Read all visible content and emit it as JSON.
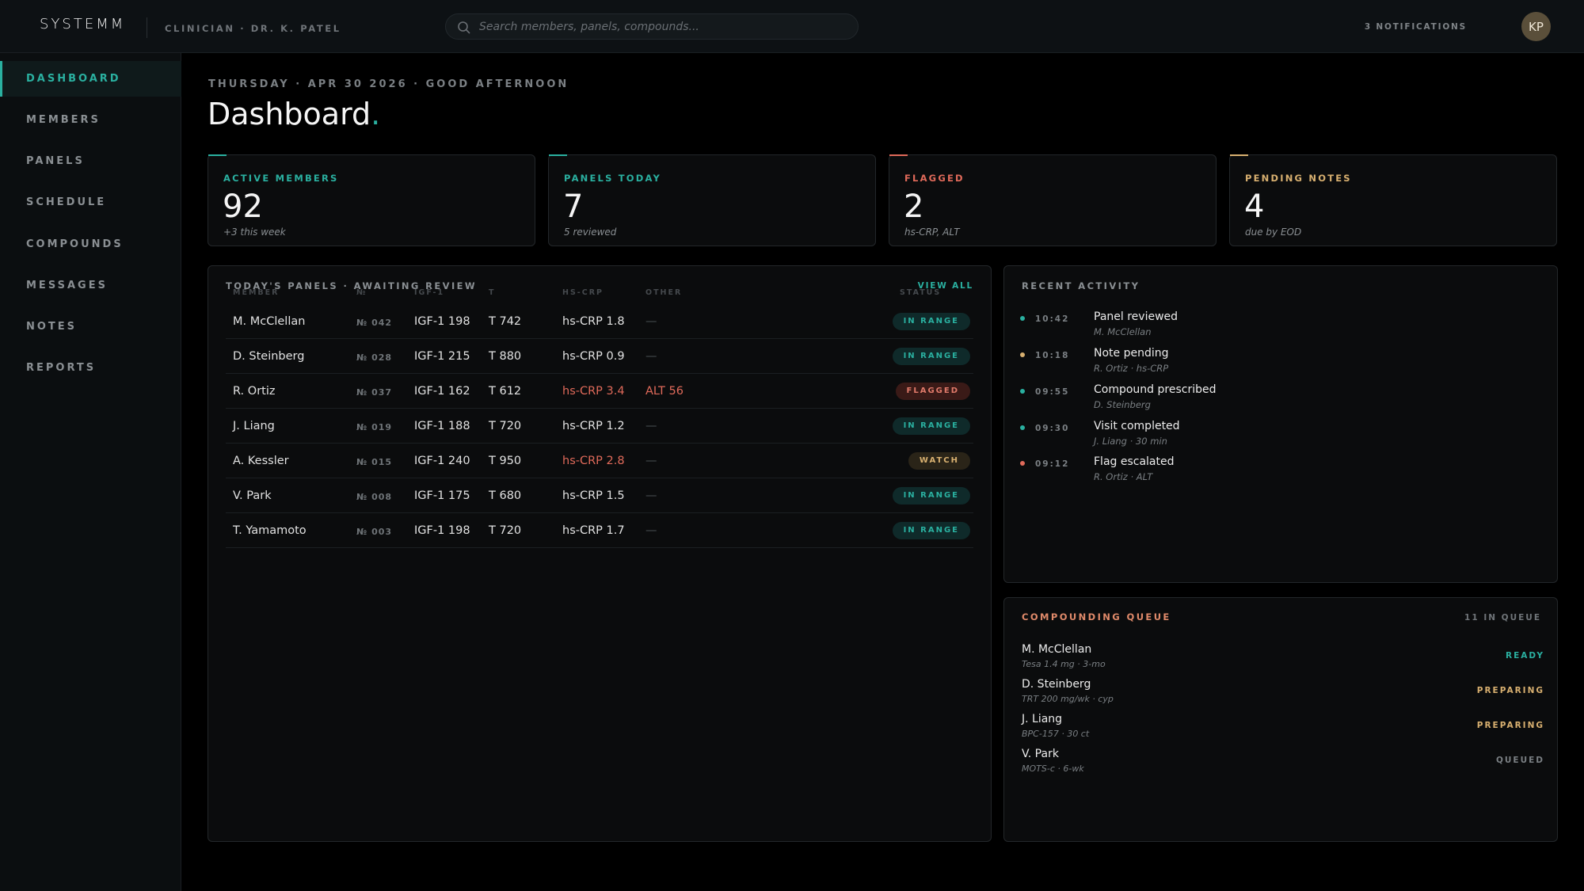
{
  "header": {
    "logo": "SYSTEMM",
    "clinician": "CLINICIAN · DR. K. PATEL",
    "search_placeholder": "Search members, panels, compounds...",
    "notifications": "3 NOTIFICATIONS",
    "avatar_initials": "KP"
  },
  "sidebar": {
    "items": [
      {
        "label": "DASHBOARD",
        "active": true
      },
      {
        "label": "MEMBERS"
      },
      {
        "label": "PANELS"
      },
      {
        "label": "SCHEDULE"
      },
      {
        "label": "COMPOUNDS"
      },
      {
        "label": "MESSAGES"
      },
      {
        "label": "NOTES"
      },
      {
        "label": "REPORTS"
      }
    ]
  },
  "main": {
    "dateline": "THURSDAY · APR 30 2026 · GOOD AFTERNOON",
    "title": "Dashboard",
    "title_dot": ".",
    "stats": [
      {
        "label": "ACTIVE MEMBERS",
        "value": "92",
        "sub": "+3 this week",
        "color": "#2ab0a0"
      },
      {
        "label": "PANELS TODAY",
        "value": "7",
        "sub": "5 reviewed",
        "color": "#2ab0a0"
      },
      {
        "label": "FLAGGED",
        "value": "2",
        "sub": "hs-CRP, ALT",
        "color": "#e06a5a"
      },
      {
        "label": "PENDING NOTES",
        "value": "4",
        "sub": "due by EOD",
        "color": "#d8b070"
      }
    ]
  },
  "panels": {
    "title": "TODAY'S PANELS · AWAITING REVIEW",
    "view_all": "VIEW ALL",
    "columns": [
      "MEMBER",
      "№",
      "IGF-1",
      "T",
      "HS-CRP",
      "OTHER",
      "STATUS"
    ],
    "rows": [
      {
        "member": "M. McClellan",
        "no": "№ 042",
        "igf": "IGF-1 198",
        "t": "T 742",
        "crp": "hs-CRP 1.8",
        "other": "—",
        "status": "IN RANGE"
      },
      {
        "member": "D. Steinberg",
        "no": "№ 028",
        "igf": "IGF-1 215",
        "t": "T 880",
        "crp": "hs-CRP 0.9",
        "other": "—",
        "status": "IN RANGE"
      },
      {
        "member": "R. Ortiz",
        "no": "№ 037",
        "igf": "IGF-1 162",
        "t": "T 612",
        "crp": "hs-CRP 3.4",
        "other": "ALT 56",
        "status": "FLAGGED"
      },
      {
        "member": "J. Liang",
        "no": "№ 019",
        "igf": "IGF-1 188",
        "t": "T 720",
        "crp": "hs-CRP 1.2",
        "other": "—",
        "status": "IN RANGE"
      },
      {
        "member": "A. Kessler",
        "no": "№ 015",
        "igf": "IGF-1 240",
        "t": "T 950",
        "crp": "hs-CRP 2.8",
        "other": "—",
        "status": "WATCH"
      },
      {
        "member": "V. Park",
        "no": "№ 008",
        "igf": "IGF-1 175",
        "t": "T 680",
        "crp": "hs-CRP 1.5",
        "other": "—",
        "status": "IN RANGE"
      },
      {
        "member": "T. Yamamoto",
        "no": "№ 003",
        "igf": "IGF-1 198",
        "t": "T 720",
        "crp": "hs-CRP 1.7",
        "other": "—",
        "status": "IN RANGE"
      }
    ]
  },
  "activity": {
    "title": "RECENT ACTIVITY",
    "items": [
      {
        "time": "10:42",
        "what": "Panel reviewed",
        "who": "M. McClellan",
        "color": "#2ab0a0"
      },
      {
        "time": "10:18",
        "what": "Note pending",
        "who": "R. Ortiz · hs-CRP",
        "color": "#d8b070"
      },
      {
        "time": "09:55",
        "what": "Compound prescribed",
        "who": "D. Steinberg",
        "color": "#2ab0a0"
      },
      {
        "time": "09:30",
        "what": "Visit completed",
        "who": "J. Liang · 30 min",
        "color": "#2ab0a0"
      },
      {
        "time": "09:12",
        "what": "Flag escalated",
        "who": "R. Ortiz · ALT",
        "color": "#e06a5a"
      }
    ]
  },
  "queue": {
    "title": "COMPOUNDING QUEUE",
    "count": "11 IN QUEUE",
    "items": [
      {
        "name": "M. McClellan",
        "rx": "Tesa 1.4 mg · 3-mo",
        "status": "READY",
        "color": "#2ab0a0"
      },
      {
        "name": "D. Steinberg",
        "rx": "TRT 200 mg/wk · cyp",
        "status": "PREPARING",
        "color": "#d8b070"
      },
      {
        "name": "J. Liang",
        "rx": "BPC-157 · 30 ct",
        "status": "PREPARING",
        "color": "#d8b070"
      },
      {
        "name": "V. Park",
        "rx": "MOTS-c · 6-wk",
        "status": "QUEUED",
        "color": "#7a7f83"
      }
    ]
  }
}
